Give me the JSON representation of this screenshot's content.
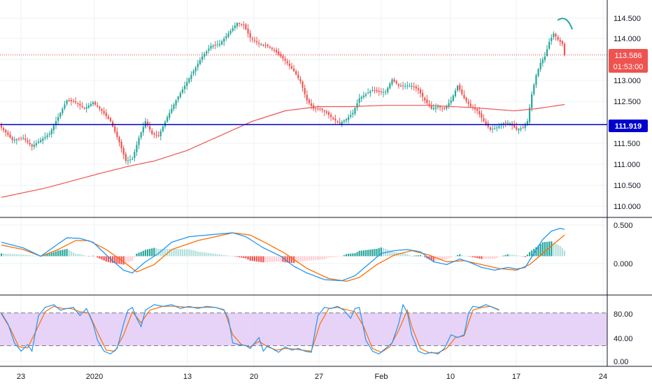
{
  "colors": {
    "up": "#26a69a",
    "down": "#ef5350",
    "grid": "#eef0f3",
    "axis_text": "#131722",
    "ma_line": "#ef5350",
    "support_line": "#0000cc",
    "last_price_line": "#e53935",
    "macd_line": "#2196f3",
    "signal_line": "#ff6d00",
    "hist_up_strong": "#26a69a",
    "hist_up_weak": "#b2dfdb",
    "hist_down_strong": "#ef5350",
    "hist_down_weak": "#ffcdd2",
    "stoch_k": "#2196f3",
    "stoch_d": "#ff6d00",
    "stoch_band": "#e1c8f5",
    "arc_marker": "#26a6a6"
  },
  "badges": {
    "support": "111.919",
    "last_price": "113.586",
    "countdown": "01:53:00"
  },
  "chart_data": [
    {
      "type": "candlestick",
      "name": "price",
      "x_ticks": [
        "23",
        "2020",
        "13",
        "20",
        "27",
        "Feb",
        "10",
        "17",
        "24"
      ],
      "y_ticks": [
        "114.500",
        "114.000",
        "113.500",
        "113.000",
        "112.500",
        "112.000",
        "111.500",
        "111.000",
        "110.500",
        "110.000"
      ],
      "ylim": [
        109.8,
        114.8
      ],
      "support_level": 111.919,
      "last_price": 113.586,
      "grid": true,
      "ohlc_anchors": [
        [
          0,
          111.85
        ],
        [
          5,
          111.55
        ],
        [
          10,
          111.6
        ],
        [
          14,
          111.4
        ],
        [
          18,
          111.55
        ],
        [
          22,
          111.7
        ],
        [
          26,
          112.1
        ],
        [
          30,
          112.5
        ],
        [
          34,
          112.45
        ],
        [
          38,
          112.3
        ],
        [
          42,
          112.45
        ],
        [
          46,
          112.25
        ],
        [
          50,
          112.0
        ],
        [
          54,
          111.5
        ],
        [
          57,
          111.05
        ],
        [
          60,
          111.1
        ],
        [
          63,
          111.6
        ],
        [
          66,
          112.0
        ],
        [
          69,
          111.7
        ],
        [
          72,
          111.65
        ],
        [
          76,
          112.1
        ],
        [
          80,
          112.5
        ],
        [
          84,
          112.85
        ],
        [
          88,
          113.2
        ],
        [
          92,
          113.55
        ],
        [
          96,
          113.8
        ],
        [
          100,
          113.85
        ],
        [
          104,
          114.1
        ],
        [
          108,
          114.35
        ],
        [
          111,
          114.3
        ],
        [
          114,
          114.0
        ],
        [
          118,
          113.85
        ],
        [
          122,
          113.8
        ],
        [
          126,
          113.65
        ],
        [
          130,
          113.45
        ],
        [
          134,
          113.2
        ],
        [
          137,
          112.95
        ],
        [
          140,
          112.5
        ],
        [
          143,
          112.3
        ],
        [
          146,
          112.3
        ],
        [
          149,
          112.2
        ],
        [
          152,
          112.05
        ],
        [
          155,
          111.95
        ],
        [
          158,
          112.05
        ],
        [
          161,
          112.2
        ],
        [
          164,
          112.55
        ],
        [
          167,
          112.65
        ],
        [
          170,
          112.75
        ],
        [
          173,
          112.7
        ],
        [
          176,
          112.7
        ],
        [
          179,
          113.0
        ],
        [
          182,
          112.85
        ],
        [
          185,
          112.85
        ],
        [
          188,
          112.85
        ],
        [
          191,
          112.75
        ],
        [
          194,
          112.5
        ],
        [
          197,
          112.3
        ],
        [
          200,
          112.35
        ],
        [
          203,
          112.3
        ],
        [
          206,
          112.5
        ],
        [
          209,
          112.85
        ],
        [
          212,
          112.55
        ],
        [
          215,
          112.35
        ],
        [
          218,
          112.25
        ],
        [
          221,
          112.0
        ],
        [
          224,
          111.8
        ],
        [
          227,
          111.85
        ],
        [
          230,
          111.95
        ],
        [
          233,
          111.95
        ],
        [
          236,
          111.8
        ],
        [
          239,
          111.85
        ],
        [
          241,
          112.0
        ],
        [
          243,
          112.65
        ],
        [
          245,
          113.1
        ],
        [
          247,
          113.4
        ],
        [
          249,
          113.55
        ],
        [
          251,
          113.9
        ],
        [
          253,
          114.1
        ],
        [
          255,
          113.95
        ],
        [
          257,
          113.85
        ],
        [
          258,
          113.586
        ]
      ],
      "ma_anchors": [
        [
          0,
          110.18
        ],
        [
          20,
          110.4
        ],
        [
          45,
          110.75
        ],
        [
          58,
          110.92
        ],
        [
          70,
          111.05
        ],
        [
          85,
          111.3
        ],
        [
          100,
          111.65
        ],
        [
          115,
          112.0
        ],
        [
          130,
          112.25
        ],
        [
          145,
          112.35
        ],
        [
          160,
          112.35
        ],
        [
          175,
          112.38
        ],
        [
          195,
          112.38
        ],
        [
          215,
          112.33
        ],
        [
          235,
          112.25
        ],
        [
          245,
          112.3
        ],
        [
          258,
          112.4
        ]
      ]
    },
    {
      "type": "macd",
      "name": "macd",
      "y_ticks": [
        "0.500",
        "0.000"
      ],
      "ylim": [
        -0.62,
        0.62
      ],
      "macd_anchors": [
        [
          0,
          0.25
        ],
        [
          10,
          0.15
        ],
        [
          18,
          0.0
        ],
        [
          26,
          0.22
        ],
        [
          30,
          0.33
        ],
        [
          36,
          0.32
        ],
        [
          42,
          0.25
        ],
        [
          50,
          -0.05
        ],
        [
          56,
          -0.25
        ],
        [
          60,
          -0.3
        ],
        [
          66,
          -0.1
        ],
        [
          72,
          0.05
        ],
        [
          78,
          0.25
        ],
        [
          86,
          0.35
        ],
        [
          100,
          0.4
        ],
        [
          106,
          0.42
        ],
        [
          112,
          0.35
        ],
        [
          120,
          0.15
        ],
        [
          128,
          0.0
        ],
        [
          134,
          -0.18
        ],
        [
          140,
          -0.3
        ],
        [
          148,
          -0.42
        ],
        [
          156,
          -0.44
        ],
        [
          162,
          -0.35
        ],
        [
          168,
          -0.15
        ],
        [
          174,
          0.05
        ],
        [
          180,
          0.1
        ],
        [
          186,
          0.12
        ],
        [
          192,
          0.08
        ],
        [
          198,
          -0.1
        ],
        [
          204,
          -0.15
        ],
        [
          210,
          -0.05
        ],
        [
          214,
          -0.1
        ],
        [
          220,
          -0.2
        ],
        [
          226,
          -0.25
        ],
        [
          232,
          -0.2
        ],
        [
          236,
          -0.23
        ],
        [
          240,
          -0.2
        ],
        [
          244,
          0.05
        ],
        [
          248,
          0.3
        ],
        [
          252,
          0.45
        ],
        [
          256,
          0.5
        ],
        [
          258,
          0.48
        ]
      ],
      "signal_anchors": [
        [
          0,
          0.2
        ],
        [
          10,
          0.12
        ],
        [
          18,
          0.0
        ],
        [
          26,
          0.12
        ],
        [
          34,
          0.28
        ],
        [
          40,
          0.28
        ],
        [
          48,
          0.12
        ],
        [
          56,
          -0.1
        ],
        [
          62,
          -0.28
        ],
        [
          70,
          -0.15
        ],
        [
          78,
          0.12
        ],
        [
          90,
          0.28
        ],
        [
          106,
          0.42
        ],
        [
          114,
          0.38
        ],
        [
          122,
          0.22
        ],
        [
          130,
          0.05
        ],
        [
          140,
          -0.22
        ],
        [
          150,
          -0.4
        ],
        [
          158,
          -0.45
        ],
        [
          164,
          -0.38
        ],
        [
          172,
          -0.15
        ],
        [
          180,
          0.02
        ],
        [
          188,
          0.1
        ],
        [
          196,
          0.02
        ],
        [
          204,
          -0.1
        ],
        [
          212,
          -0.08
        ],
        [
          220,
          -0.15
        ],
        [
          228,
          -0.22
        ],
        [
          236,
          -0.25
        ],
        [
          242,
          -0.15
        ],
        [
          248,
          0.05
        ],
        [
          254,
          0.25
        ],
        [
          258,
          0.38
        ]
      ]
    },
    {
      "type": "stochastic",
      "name": "stoch",
      "y_ticks": [
        "80.00",
        "40.00",
        "0.00"
      ],
      "ylim": [
        -10,
        105
      ],
      "band": [
        20,
        80
      ],
      "k_anchors": [
        [
          0,
          80
        ],
        [
          3,
          60
        ],
        [
          6,
          25
        ],
        [
          9,
          10
        ],
        [
          12,
          22
        ],
        [
          14,
          10
        ],
        [
          17,
          75
        ],
        [
          20,
          90
        ],
        [
          24,
          95
        ],
        [
          27,
          85
        ],
        [
          30,
          88
        ],
        [
          33,
          90
        ],
        [
          36,
          75
        ],
        [
          39,
          88
        ],
        [
          42,
          60
        ],
        [
          44,
          30
        ],
        [
          47,
          10
        ],
        [
          50,
          5
        ],
        [
          53,
          15
        ],
        [
          56,
          60
        ],
        [
          58,
          85
        ],
        [
          60,
          90
        ],
        [
          62,
          70
        ],
        [
          64,
          55
        ],
        [
          66,
          85
        ],
        [
          70,
          95
        ],
        [
          74,
          92
        ],
        [
          78,
          95
        ],
        [
          82,
          88
        ],
        [
          86,
          92
        ],
        [
          90,
          88
        ],
        [
          94,
          92
        ],
        [
          98,
          90
        ],
        [
          102,
          85
        ],
        [
          104,
          70
        ],
        [
          106,
          25
        ],
        [
          109,
          22
        ],
        [
          112,
          20
        ],
        [
          114,
          15
        ],
        [
          116,
          25
        ],
        [
          118,
          35
        ],
        [
          120,
          10
        ],
        [
          122,
          20
        ],
        [
          124,
          15
        ],
        [
          127,
          8
        ],
        [
          130,
          18
        ],
        [
          133,
          12
        ],
        [
          136,
          15
        ],
        [
          139,
          10
        ],
        [
          142,
          8
        ],
        [
          145,
          75
        ],
        [
          148,
          90
        ],
        [
          151,
          88
        ],
        [
          154,
          92
        ],
        [
          157,
          85
        ],
        [
          160,
          70
        ],
        [
          162,
          88
        ],
        [
          164,
          90
        ],
        [
          167,
          30
        ],
        [
          170,
          10
        ],
        [
          173,
          5
        ],
        [
          176,
          15
        ],
        [
          179,
          25
        ],
        [
          182,
          60
        ],
        [
          184,
          95
        ],
        [
          186,
          80
        ],
        [
          188,
          40
        ],
        [
          191,
          10
        ],
        [
          194,
          5
        ],
        [
          197,
          8
        ],
        [
          200,
          5
        ],
        [
          203,
          15
        ],
        [
          206,
          40
        ],
        [
          209,
          35
        ],
        [
          212,
          40
        ],
        [
          214,
          80
        ],
        [
          216,
          92
        ],
        [
          219,
          90
        ],
        [
          222,
          95
        ],
        [
          225,
          90
        ],
        [
          228,
          85
        ]
      ],
      "d_anchors": [
        [
          0,
          78
        ],
        [
          4,
          52
        ],
        [
          8,
          18
        ],
        [
          12,
          16
        ],
        [
          16,
          48
        ],
        [
          20,
          82
        ],
        [
          24,
          92
        ],
        [
          28,
          88
        ],
        [
          32,
          88
        ],
        [
          36,
          82
        ],
        [
          40,
          80
        ],
        [
          44,
          45
        ],
        [
          48,
          12
        ],
        [
          52,
          10
        ],
        [
          56,
          40
        ],
        [
          60,
          82
        ],
        [
          64,
          62
        ],
        [
          68,
          85
        ],
        [
          74,
          92
        ],
        [
          80,
          92
        ],
        [
          86,
          90
        ],
        [
          92,
          90
        ],
        [
          98,
          90
        ],
        [
          102,
          86
        ],
        [
          106,
          40
        ],
        [
          110,
          22
        ],
        [
          114,
          18
        ],
        [
          118,
          28
        ],
        [
          122,
          18
        ],
        [
          126,
          12
        ],
        [
          130,
          15
        ],
        [
          134,
          14
        ],
        [
          138,
          12
        ],
        [
          142,
          10
        ],
        [
          146,
          60
        ],
        [
          150,
          88
        ],
        [
          154,
          90
        ],
        [
          158,
          86
        ],
        [
          162,
          82
        ],
        [
          166,
          55
        ],
        [
          170,
          15
        ],
        [
          174,
          8
        ],
        [
          178,
          18
        ],
        [
          182,
          48
        ],
        [
          186,
          85
        ],
        [
          188,
          55
        ],
        [
          192,
          15
        ],
        [
          196,
          7
        ],
        [
          200,
          7
        ],
        [
          204,
          15
        ],
        [
          208,
          35
        ],
        [
          212,
          38
        ],
        [
          216,
          85
        ],
        [
          220,
          90
        ],
        [
          224,
          92
        ],
        [
          228,
          86
        ]
      ]
    }
  ]
}
